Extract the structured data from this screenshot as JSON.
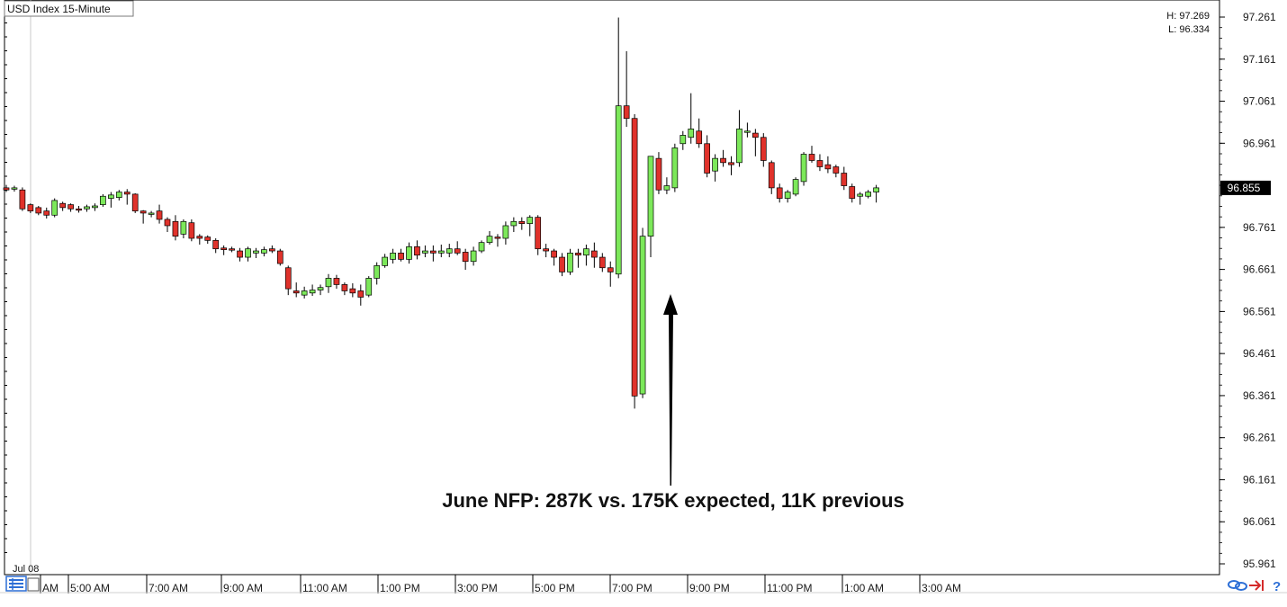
{
  "chart_title": "USD Index 15-Minute",
  "high_label": "H: 97.269",
  "low_label": "L: 96.334",
  "date_label": "Jul 08",
  "current_price": "96.855",
  "annotation": "June NFP: 287K vs. 175K expected, 11K previous",
  "colors": {
    "up": "#7ce85a",
    "down": "#e0322b",
    "wick": "#000000",
    "price_tag": "#000000",
    "icon_blue": "#2d6fd6",
    "icon_red": "#d42a2a"
  },
  "toolbar_icons": [
    "grid-list-icon",
    "link-icon",
    "arrow-to-edge-icon",
    "help-icon"
  ],
  "chart_data": {
    "type": "candlestick",
    "title": "USD Index 15-Minute",
    "y_range": [
      95.961,
      97.261
    ],
    "y_ticks": [
      "97.261",
      "97.161",
      "97.061",
      "96.961",
      "96.855",
      "96.761",
      "96.661",
      "96.561",
      "96.461",
      "96.361",
      "96.261",
      "96.161",
      "96.061",
      "95.961"
    ],
    "x_ticks": [
      "AM",
      "5:00 AM",
      "7:00 AM",
      "9:00 AM",
      "11:00 AM",
      "1:00 PM",
      "3:00 PM",
      "5:00 PM",
      "7:00 PM",
      "9:00 PM",
      "11:00 PM",
      "1:00 AM",
      "3:00 AM"
    ],
    "candles": [
      [
        96.855,
        96.862,
        96.845,
        96.85
      ],
      [
        96.852,
        96.86,
        96.846,
        96.855
      ],
      [
        96.85,
        96.856,
        96.8,
        96.805
      ],
      [
        96.815,
        96.818,
        96.795,
        96.8
      ],
      [
        96.808,
        96.812,
        96.79,
        96.795
      ],
      [
        96.8,
        96.808,
        96.782,
        96.79
      ],
      [
        96.79,
        96.83,
        96.785,
        96.825
      ],
      [
        96.818,
        96.822,
        96.8,
        96.808
      ],
      [
        96.815,
        96.818,
        96.798,
        96.805
      ],
      [
        96.805,
        96.812,
        96.796,
        96.802
      ],
      [
        96.805,
        96.815,
        96.798,
        96.81
      ],
      [
        96.808,
        96.818,
        96.8,
        96.812
      ],
      [
        96.815,
        96.84,
        96.81,
        96.835
      ],
      [
        96.83,
        96.845,
        96.808,
        96.838
      ],
      [
        96.832,
        96.85,
        96.825,
        96.845
      ],
      [
        96.845,
        96.852,
        96.815,
        96.84
      ],
      [
        96.84,
        96.842,
        96.795,
        96.8
      ],
      [
        96.8,
        96.802,
        96.77,
        96.795
      ],
      [
        96.795,
        96.8,
        96.785,
        96.795
      ],
      [
        96.8,
        96.815,
        96.77,
        96.78
      ],
      [
        96.78,
        96.785,
        96.75,
        96.765
      ],
      [
        96.775,
        96.79,
        96.73,
        96.74
      ],
      [
        96.745,
        96.78,
        96.735,
        96.775
      ],
      [
        96.772,
        96.78,
        96.728,
        96.735
      ],
      [
        96.74,
        96.745,
        96.72,
        96.735
      ],
      [
        96.738,
        96.742,
        96.722,
        96.73
      ],
      [
        96.73,
        96.735,
        96.7,
        96.71
      ],
      [
        96.712,
        96.718,
        96.695,
        96.708
      ],
      [
        96.71,
        96.715,
        96.702,
        96.708
      ],
      [
        96.705,
        96.712,
        96.68,
        96.69
      ],
      [
        96.69,
        96.715,
        96.68,
        96.71
      ],
      [
        96.7,
        96.712,
        96.688,
        96.705
      ],
      [
        96.7,
        96.715,
        96.692,
        96.708
      ],
      [
        96.71,
        96.718,
        96.7,
        96.705
      ],
      [
        96.705,
        96.71,
        96.67,
        96.675
      ],
      [
        96.665,
        96.67,
        96.6,
        96.615
      ],
      [
        96.61,
        96.63,
        96.595,
        96.605
      ],
      [
        96.6,
        96.62,
        96.592,
        96.61
      ],
      [
        96.605,
        96.625,
        96.598,
        96.612
      ],
      [
        96.612,
        96.625,
        96.6,
        96.618
      ],
      [
        96.62,
        96.65,
        96.605,
        96.64
      ],
      [
        96.64,
        96.648,
        96.615,
        96.625
      ],
      [
        96.625,
        96.63,
        96.6,
        96.61
      ],
      [
        96.615,
        96.628,
        96.595,
        96.605
      ],
      [
        96.61,
        96.625,
        96.575,
        96.595
      ],
      [
        96.6,
        96.645,
        96.595,
        96.64
      ],
      [
        96.64,
        96.678,
        96.625,
        96.67
      ],
      [
        96.67,
        96.698,
        96.665,
        96.69
      ],
      [
        96.685,
        96.71,
        96.675,
        96.7
      ],
      [
        96.7,
        96.71,
        96.68,
        96.685
      ],
      [
        96.685,
        96.725,
        96.675,
        96.715
      ],
      [
        96.715,
        96.73,
        96.685,
        96.695
      ],
      [
        96.7,
        96.718,
        96.69,
        96.705
      ],
      [
        96.705,
        96.718,
        96.68,
        96.7
      ],
      [
        96.7,
        96.72,
        96.69,
        96.705
      ],
      [
        96.7,
        96.722,
        96.69,
        96.71
      ],
      [
        96.71,
        96.728,
        96.695,
        96.7
      ],
      [
        96.702,
        96.71,
        96.66,
        96.68
      ],
      [
        96.68,
        96.715,
        96.67,
        96.705
      ],
      [
        96.705,
        96.73,
        96.7,
        96.725
      ],
      [
        96.725,
        96.752,
        96.72,
        96.74
      ],
      [
        96.738,
        96.745,
        96.715,
        96.735
      ],
      [
        96.735,
        96.775,
        96.72,
        96.765
      ],
      [
        96.765,
        96.785,
        96.75,
        96.775
      ],
      [
        96.775,
        96.785,
        96.755,
        96.77
      ],
      [
        96.77,
        96.79,
        96.74,
        96.785
      ],
      [
        96.785,
        96.79,
        96.695,
        96.71
      ],
      [
        96.71,
        96.722,
        96.69,
        96.705
      ],
      [
        96.705,
        96.71,
        96.67,
        96.69
      ],
      [
        96.69,
        96.7,
        96.645,
        96.655
      ],
      [
        96.655,
        96.71,
        96.648,
        96.7
      ],
      [
        96.7,
        96.71,
        96.665,
        96.695
      ],
      [
        96.695,
        96.72,
        96.67,
        96.71
      ],
      [
        96.705,
        96.725,
        96.665,
        96.69
      ],
      [
        96.69,
        96.7,
        96.655,
        96.665
      ],
      [
        96.665,
        96.68,
        96.62,
        96.655
      ],
      [
        96.65,
        97.26,
        96.64,
        97.05
      ],
      [
        97.05,
        97.18,
        97.0,
        97.02
      ],
      [
        97.02,
        97.03,
        96.33,
        96.36
      ],
      [
        96.365,
        96.76,
        96.355,
        96.74
      ],
      [
        96.74,
        96.93,
        96.69,
        96.93
      ],
      [
        96.925,
        96.94,
        96.84,
        96.85
      ],
      [
        96.85,
        96.88,
        96.84,
        96.86
      ],
      [
        96.855,
        96.96,
        96.845,
        96.95
      ],
      [
        96.96,
        96.99,
        96.945,
        96.98
      ],
      [
        96.975,
        97.08,
        96.96,
        96.995
      ],
      [
        96.99,
        97.02,
        96.95,
        96.96
      ],
      [
        96.96,
        96.98,
        96.88,
        96.89
      ],
      [
        96.895,
        96.935,
        96.87,
        96.925
      ],
      [
        96.925,
        96.945,
        96.905,
        96.915
      ],
      [
        96.915,
        96.93,
        96.885,
        96.91
      ],
      [
        96.915,
        97.04,
        96.905,
        96.995
      ],
      [
        96.99,
        97.01,
        96.975,
        96.99
      ],
      [
        96.985,
        96.995,
        96.93,
        96.975
      ],
      [
        96.975,
        96.985,
        96.905,
        96.92
      ],
      [
        96.915,
        96.92,
        96.84,
        96.855
      ],
      [
        96.855,
        96.865,
        96.82,
        96.83
      ],
      [
        96.83,
        96.85,
        96.82,
        96.845
      ],
      [
        96.84,
        96.88,
        96.835,
        96.875
      ],
      [
        96.87,
        96.94,
        96.86,
        96.935
      ],
      [
        96.935,
        96.955,
        96.915,
        96.92
      ],
      [
        96.92,
        96.935,
        96.895,
        96.905
      ],
      [
        96.91,
        96.93,
        96.89,
        96.9
      ],
      [
        96.905,
        96.91,
        96.88,
        96.89
      ],
      [
        96.89,
        96.905,
        96.85,
        96.86
      ],
      [
        96.858,
        96.865,
        96.82,
        96.83
      ],
      [
        96.835,
        96.845,
        96.815,
        96.84
      ],
      [
        96.835,
        96.85,
        96.83,
        96.845
      ],
      [
        96.845,
        96.862,
        96.82,
        96.855
      ]
    ]
  }
}
